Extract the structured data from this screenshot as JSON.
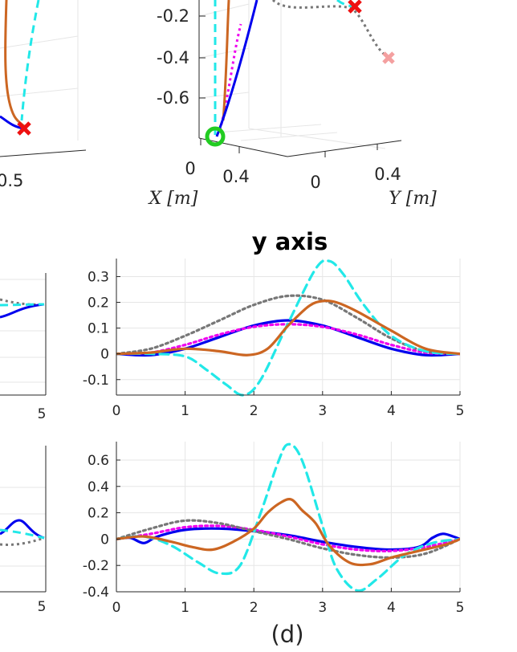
{
  "caption": "(d)",
  "colors": {
    "solid": "#0000ee",
    "dotted_magenta": "#ee00ee",
    "dotted_gray": "#777777",
    "dashed_cyan": "#22e8e8",
    "orange": "#cc6622",
    "start_marker": "#22cc22",
    "end_marker": "#ee1111",
    "pink_marker": "#f4a0a0",
    "axis": "#262626",
    "grid": "#e6e6e6"
  },
  "top3d": {
    "z_ticks": [
      "-0.2",
      "-0.4",
      "-0.6"
    ],
    "x_ticks": [
      "0",
      "0.4"
    ],
    "y_ticks": [
      "0",
      "0.4"
    ],
    "xlabel": "X [m]",
    "ylabel": "Y [m]",
    "left_tick": "0.5"
  },
  "chart_data": [
    {
      "type": "line",
      "title": "y axis",
      "xlim": [
        0,
        5
      ],
      "ylim": [
        -0.16,
        0.37
      ],
      "xticks": [
        "0",
        "1",
        "2",
        "3",
        "4",
        "5"
      ],
      "yticks": [
        "-0.1",
        "0",
        "0.1",
        "0.2",
        "0.3"
      ],
      "grid": true,
      "series": [
        {
          "style": "solid-blue",
          "x": [
            0,
            0.5,
            1.0,
            1.5,
            2.0,
            2.5,
            3.0,
            3.5,
            4.0,
            4.5,
            5.0
          ],
          "y": [
            0,
            -0.005,
            0.02,
            0.065,
            0.11,
            0.13,
            0.11,
            0.065,
            0.02,
            -0.005,
            0
          ]
        },
        {
          "style": "dotted-magenta",
          "x": [
            0,
            0.5,
            1.0,
            1.5,
            2.0,
            2.5,
            3.0,
            3.5,
            4.0,
            4.5,
            5.0
          ],
          "y": [
            0,
            0.005,
            0.035,
            0.075,
            0.105,
            0.115,
            0.105,
            0.075,
            0.035,
            0.005,
            0
          ]
        },
        {
          "style": "dotted-gray",
          "x": [
            0,
            0.5,
            1.0,
            1.5,
            2.0,
            2.5,
            3.0,
            3.5,
            4.0,
            4.5,
            5.0
          ],
          "y": [
            0,
            0.02,
            0.07,
            0.13,
            0.19,
            0.225,
            0.21,
            0.14,
            0.06,
            0.01,
            0
          ]
        },
        {
          "style": "dashed-cyan",
          "x": [
            0,
            0.5,
            1.0,
            1.3,
            1.6,
            1.85,
            2.1,
            2.5,
            2.9,
            3.1,
            3.3,
            3.6,
            4.0,
            4.5,
            5.0
          ],
          "y": [
            0,
            0,
            -0.01,
            -0.06,
            -0.12,
            -0.16,
            -0.1,
            0.12,
            0.33,
            0.36,
            0.31,
            0.19,
            0.07,
            0.01,
            0
          ]
        },
        {
          "style": "orange",
          "x": [
            0,
            0.5,
            1.0,
            1.5,
            1.9,
            2.2,
            2.5,
            2.8,
            3.0,
            3.2,
            3.5,
            4.0,
            4.5,
            5.0
          ],
          "y": [
            0,
            0.005,
            0.02,
            0.01,
            -0.005,
            0.02,
            0.11,
            0.185,
            0.205,
            0.2,
            0.165,
            0.09,
            0.02,
            0
          ]
        }
      ]
    },
    {
      "type": "line",
      "title": "",
      "xlim": [
        0,
        5
      ],
      "ylim": [
        -0.4,
        0.74
      ],
      "xticks": [
        "0",
        "1",
        "2",
        "3",
        "4",
        "5"
      ],
      "yticks": [
        "-0.4",
        "-0.2",
        "0",
        "0.2",
        "0.4",
        "0.6"
      ],
      "grid": true,
      "series": [
        {
          "style": "solid-blue",
          "x": [
            0,
            0.2,
            0.4,
            0.6,
            1.0,
            1.5,
            2.0,
            2.5,
            3.0,
            3.5,
            4.0,
            4.4,
            4.6,
            4.75,
            4.9,
            5.0
          ],
          "y": [
            0,
            0.01,
            -0.03,
            0.02,
            0.07,
            0.08,
            0.06,
            0.03,
            -0.02,
            -0.06,
            -0.08,
            -0.06,
            0.01,
            0.04,
            0.02,
            0
          ]
        },
        {
          "style": "dotted-magenta",
          "x": [
            0,
            0.5,
            1.0,
            1.5,
            2.0,
            2.5,
            3.0,
            3.5,
            4.0,
            4.5,
            5.0
          ],
          "y": [
            0,
            0.04,
            0.09,
            0.1,
            0.07,
            0.02,
            -0.04,
            -0.08,
            -0.09,
            -0.06,
            0
          ]
        },
        {
          "style": "dotted-gray",
          "x": [
            0,
            0.5,
            1.0,
            1.5,
            2.0,
            2.5,
            3.0,
            3.5,
            4.0,
            4.5,
            5.0
          ],
          "y": [
            0,
            0.08,
            0.14,
            0.12,
            0.06,
            0.0,
            -0.07,
            -0.12,
            -0.14,
            -0.11,
            0
          ]
        },
        {
          "style": "dashed-cyan",
          "x": [
            0,
            0.4,
            0.8,
            1.2,
            1.5,
            1.8,
            2.1,
            2.35,
            2.5,
            2.7,
            3.0,
            3.2,
            3.5,
            3.8,
            4.2,
            4.6,
            5.0
          ],
          "y": [
            0,
            0.02,
            -0.05,
            -0.18,
            -0.26,
            -0.2,
            0.2,
            0.58,
            0.72,
            0.6,
            0.1,
            -0.22,
            -0.39,
            -0.3,
            -0.12,
            -0.03,
            0
          ]
        },
        {
          "style": "orange",
          "x": [
            0,
            0.4,
            0.8,
            1.1,
            1.4,
            1.7,
            2.0,
            2.2,
            2.4,
            2.55,
            2.7,
            2.9,
            3.1,
            3.4,
            3.7,
            4.0,
            4.4,
            4.8,
            5.0
          ],
          "y": [
            0,
            0.02,
            -0.02,
            -0.06,
            -0.08,
            -0.02,
            0.08,
            0.2,
            0.28,
            0.3,
            0.22,
            0.12,
            -0.05,
            -0.18,
            -0.19,
            -0.14,
            -0.09,
            -0.04,
            0
          ]
        }
      ]
    }
  ]
}
